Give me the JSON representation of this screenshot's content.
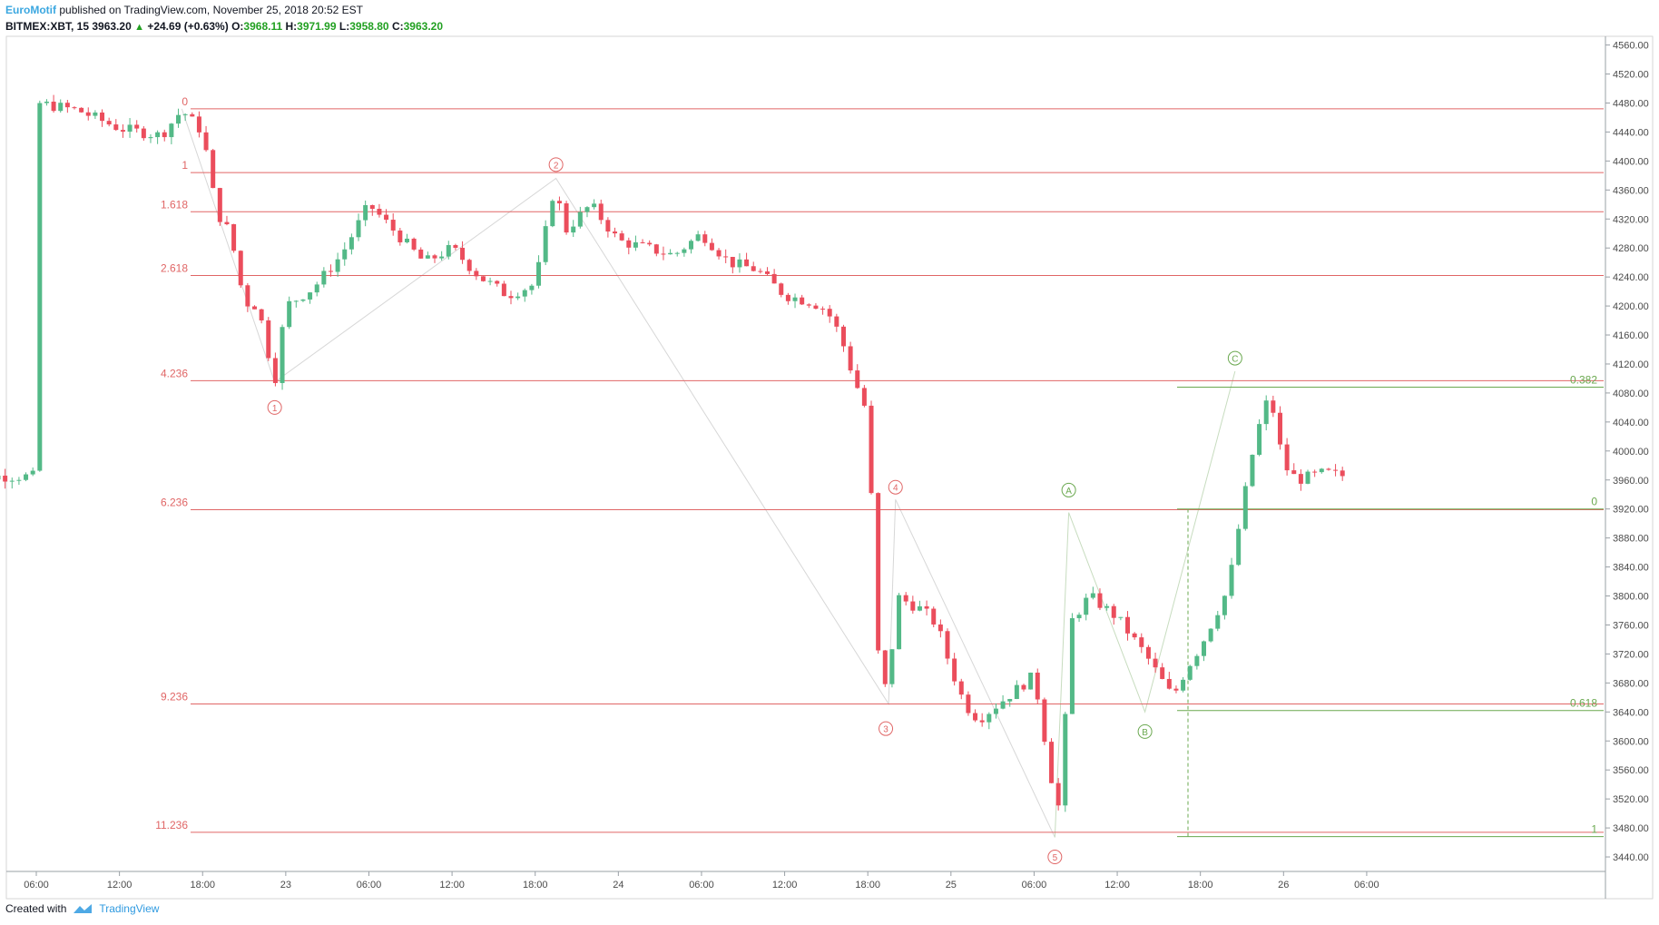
{
  "header": {
    "author": "EuroMotif",
    "published_text": "published on TradingView.com, November 25, 2018 20:52 EST",
    "symbol": "BITMEX:XBT, 15",
    "last": "3963.20",
    "change_arrow": "▲",
    "change": "+24.69 (+0.63%)",
    "o_label": "O:",
    "o_value": "3968.11",
    "h_label": "H:",
    "h_value": "3971.99",
    "l_label": "L:",
    "l_value": "3958.80",
    "c_label": "C:",
    "c_value": "3963.20"
  },
  "footer": {
    "created_with": "Created with",
    "brand": "TradingView"
  },
  "colors": {
    "up": "#53b987",
    "down": "#eb4d5c",
    "fib_red": "#e06666",
    "fib_green": "#6aa84f",
    "grid": "#e0e3eb",
    "wave": "#bcbcbc"
  },
  "chart_data": {
    "type": "candlestick",
    "symbol": "BITMEX:XBT",
    "interval": "15",
    "x_ticks": [
      "06:00",
      "12:00",
      "18:00",
      "23",
      "06:00",
      "12:00",
      "18:00",
      "24",
      "06:00",
      "12:00",
      "18:00",
      "25",
      "06:00",
      "12:00",
      "18:00",
      "26",
      "06:00"
    ],
    "y_ticks": [
      "4560.00",
      "4520.00",
      "4480.00",
      "4440.00",
      "4400.00",
      "4360.00",
      "4320.00",
      "4280.00",
      "4240.00",
      "4200.00",
      "4160.00",
      "4120.00",
      "4080.00",
      "4040.00",
      "4000.00",
      "3960.00",
      "3920.00",
      "3880.00",
      "3840.00",
      "3800.00",
      "3760.00",
      "3720.00",
      "3680.00",
      "3640.00",
      "3600.00",
      "3560.00",
      "3520.00",
      "3480.00",
      "3440.00"
    ],
    "ylim": [
      3420,
      4572
    ],
    "fib_extension_levels": [
      {
        "label": "0",
        "value": 4472
      },
      {
        "label": "1",
        "value": 4384
      },
      {
        "label": "1.618",
        "value": 4330
      },
      {
        "label": "2.618",
        "value": 4242
      },
      {
        "label": "4.236",
        "value": 4097
      },
      {
        "label": "6.236",
        "value": 3919
      },
      {
        "label": "9.236",
        "value": 3651
      },
      {
        "label": "11.236",
        "value": 3474
      }
    ],
    "fib_retracement_levels": [
      {
        "label": "0.382",
        "value": 4088
      },
      {
        "label": "0",
        "value": 3920
      },
      {
        "label": "0.618",
        "value": 3642
      },
      {
        "label": "1",
        "value": 3468
      }
    ],
    "wave_labels": [
      {
        "label": "1",
        "x": "23 00:00",
        "price": 4095
      },
      {
        "label": "2",
        "x": "23 19:30",
        "price": 4376
      },
      {
        "label": "3",
        "x": "24 17:45",
        "price": 3651
      },
      {
        "label": "4",
        "x": "24 18:00",
        "price": 3933
      },
      {
        "label": "5",
        "x": "25 05:30",
        "price": 3467
      },
      {
        "label": "A",
        "x": "25 06:00",
        "price": 3915
      },
      {
        "label": "B",
        "x": "25 12:00",
        "price": 3640
      },
      {
        "label": "C",
        "x": "25 17:00",
        "price": 4110
      }
    ],
    "last_price": 3963.2
  }
}
